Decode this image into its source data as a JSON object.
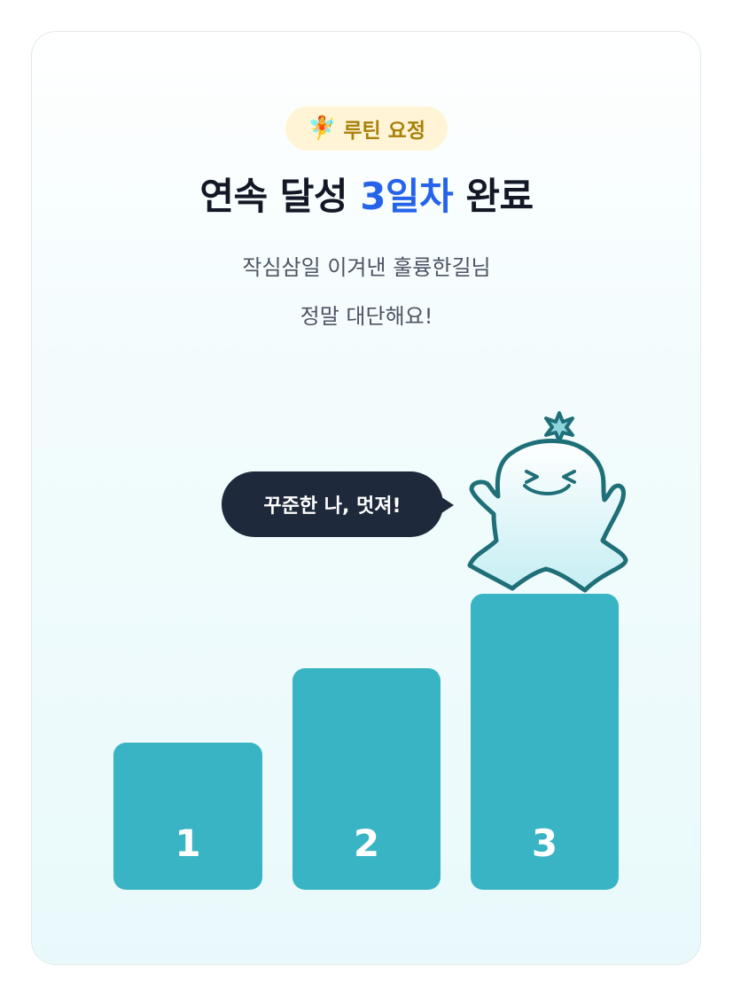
{
  "badge": {
    "emoji": "🧚",
    "label": "루틴 요정"
  },
  "title": {
    "prefix": "연속 달성 ",
    "highlight": "3일차",
    "suffix": " 완료"
  },
  "subtitle": {
    "line1": "작심삼일 이겨낸 훌륭한길님",
    "line2": "정말 대단해요!"
  },
  "bubble": {
    "text": "꾸준한 나, 멋져!"
  },
  "podium": [
    {
      "label": "1"
    },
    {
      "label": "2"
    },
    {
      "label": "3"
    }
  ],
  "colors": {
    "accent": "#2563eb",
    "bar": "#38b4c4",
    "bubble": "#1e293b",
    "badge_text": "#a8800a",
    "ghost_outline": "#1f6f78"
  },
  "mascot": {
    "icon": "ghost-mascot-icon",
    "active_day": 3
  }
}
